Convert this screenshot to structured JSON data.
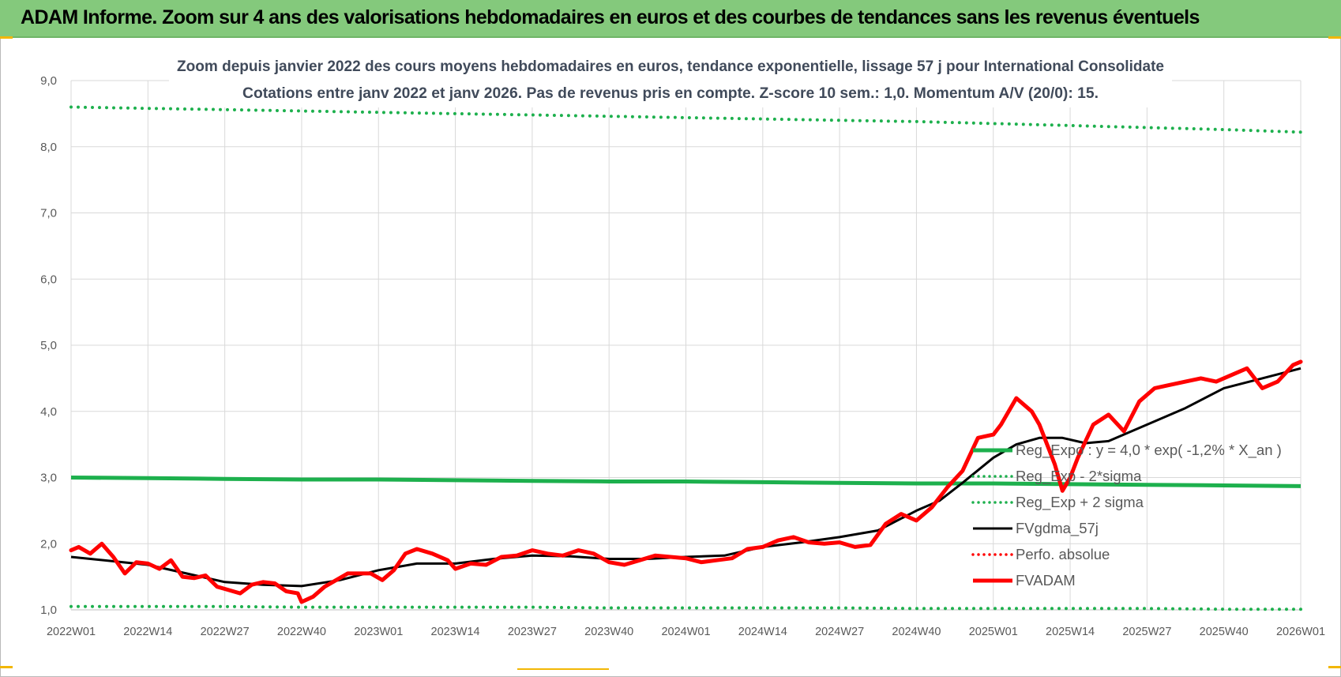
{
  "banner": {
    "title": "ADAM Informe. Zoom sur 4 ans des valorisations hebdomadaires en euros et des courbes de tendances sans les revenus éventuels"
  },
  "colors": {
    "banner_bg": "#84c97c",
    "trend": "#1db04d",
    "band_dots": "#1db04d",
    "moving_average": "#000000",
    "perf_absolue": "#ff0000",
    "price": "#ff0000"
  },
  "chart_data": {
    "type": "line",
    "title_lines": [
      "Zoom depuis janvier 2022 des cours moyens hebdomadaires en euros, tendance exponentielle, lissage 57 j pour International Consolidate",
      "Cotations entre janv 2022 et janv 2026. Pas de revenus pris en compte. Z-score 10 sem.: 1,0. Momentum A/V (20/0): 15."
    ],
    "xlabel": "",
    "ylabel": "",
    "ylim": [
      1.0,
      9.0
    ],
    "y_ticks": [
      "1,0",
      "2,0",
      "3,0",
      "4,0",
      "5,0",
      "6,0",
      "7,0",
      "8,0",
      "9,0"
    ],
    "x_ticks": [
      "2022W01",
      "2022W14",
      "2022W27",
      "2022W40",
      "2023W01",
      "2023W14",
      "2023W27",
      "2023W40",
      "2024W01",
      "2024W14",
      "2024W27",
      "2024W40",
      "2025W01",
      "2025W14",
      "2025W27",
      "2025W40",
      "2026W01"
    ],
    "grid": true,
    "legend_position": "right",
    "legend": [
      {
        "label": "Reg_Expo : y = 4,0 * exp( -1,2% *  X_an )",
        "style": "solid-thick",
        "color": "#1db04d"
      },
      {
        "label": "Reg_Exp - 2*sigma",
        "style": "dotted",
        "color": "#1db04d"
      },
      {
        "label": "Reg_Exp + 2 sigma",
        "style": "dotted",
        "color": "#1db04d"
      },
      {
        "label": "FVgdma_57j",
        "style": "solid",
        "color": "#000000"
      },
      {
        "label": "Perfo. absolue",
        "style": "dotted",
        "color": "#ff0000"
      },
      {
        "label": "FVADAM",
        "style": "solid-thick",
        "color": "#ff0000"
      }
    ],
    "series": [
      {
        "key": "upper",
        "values_at_ticks": [
          8.6,
          8.58,
          8.56,
          8.54,
          8.52,
          8.5,
          8.48,
          8.46,
          8.44,
          8.42,
          8.4,
          8.38,
          8.35,
          8.32,
          8.29,
          8.26,
          8.22
        ]
      },
      {
        "key": "trend",
        "values_at_ticks": [
          3.0,
          2.99,
          2.98,
          2.97,
          2.97,
          2.96,
          2.95,
          2.94,
          2.94,
          2.93,
          2.92,
          2.91,
          2.91,
          2.9,
          2.89,
          2.88,
          2.87
        ]
      },
      {
        "key": "lower",
        "values_at_ticks": [
          1.05,
          1.05,
          1.05,
          1.04,
          1.04,
          1.04,
          1.04,
          1.03,
          1.03,
          1.03,
          1.03,
          1.02,
          1.02,
          1.02,
          1.02,
          1.01,
          1.01
        ]
      },
      {
        "key": "ma57",
        "x": [
          0,
          1,
          1.5,
          2,
          2.5,
          3,
          3.5,
          4,
          4.5,
          5,
          5.5,
          6,
          6.5,
          7,
          7.5,
          8,
          8.5,
          9,
          9.5,
          10,
          10.5,
          11,
          11.3,
          11.6,
          12,
          12.3,
          12.6,
          12.9,
          13.2,
          13.5,
          14,
          14.5,
          15,
          15.5,
          16
        ],
        "y": [
          1.8,
          1.68,
          1.55,
          1.42,
          1.38,
          1.36,
          1.45,
          1.6,
          1.7,
          1.7,
          1.77,
          1.82,
          1.81,
          1.77,
          1.77,
          1.8,
          1.82,
          1.95,
          2.02,
          2.1,
          2.2,
          2.5,
          2.65,
          2.92,
          3.3,
          3.5,
          3.6,
          3.6,
          3.52,
          3.55,
          3.8,
          4.05,
          4.35,
          4.5,
          4.65
        ]
      },
      {
        "key": "price",
        "x": [
          0,
          0.1,
          0.25,
          0.4,
          0.55,
          0.7,
          0.85,
          1.0,
          1.15,
          1.3,
          1.45,
          1.6,
          1.75,
          1.9,
          2.05,
          2.2,
          2.35,
          2.5,
          2.65,
          2.8,
          2.95,
          3.0,
          3.15,
          3.3,
          3.45,
          3.6,
          3.75,
          3.9,
          4.05,
          4.2,
          4.35,
          4.5,
          4.7,
          4.9,
          5.0,
          5.2,
          5.4,
          5.6,
          5.8,
          6.0,
          6.2,
          6.4,
          6.6,
          6.8,
          7.0,
          7.2,
          7.4,
          7.6,
          7.8,
          8.0,
          8.2,
          8.4,
          8.6,
          8.8,
          9.0,
          9.2,
          9.4,
          9.6,
          9.8,
          10.0,
          10.2,
          10.4,
          10.6,
          10.8,
          11.0,
          11.2,
          11.4,
          11.6,
          11.8,
          12.0,
          12.1,
          12.3,
          12.5,
          12.6,
          12.8,
          12.9,
          13.0,
          13.1,
          13.3,
          13.5,
          13.7,
          13.9,
          14.1,
          14.3,
          14.5,
          14.7,
          14.9,
          15.1,
          15.3,
          15.5,
          15.7,
          15.9,
          16.0
        ],
        "y": [
          1.9,
          1.95,
          1.85,
          2.0,
          1.8,
          1.55,
          1.72,
          1.7,
          1.62,
          1.75,
          1.5,
          1.48,
          1.52,
          1.35,
          1.3,
          1.25,
          1.38,
          1.42,
          1.4,
          1.28,
          1.25,
          1.12,
          1.2,
          1.35,
          1.45,
          1.55,
          1.55,
          1.55,
          1.45,
          1.6,
          1.85,
          1.92,
          1.85,
          1.75,
          1.62,
          1.7,
          1.68,
          1.8,
          1.82,
          1.9,
          1.85,
          1.82,
          1.9,
          1.85,
          1.72,
          1.68,
          1.75,
          1.82,
          1.8,
          1.78,
          1.72,
          1.75,
          1.78,
          1.92,
          1.95,
          2.05,
          2.1,
          2.02,
          2.0,
          2.02,
          1.95,
          1.98,
          2.3,
          2.45,
          2.35,
          2.55,
          2.85,
          3.1,
          3.6,
          3.65,
          3.8,
          4.2,
          4.0,
          3.8,
          3.2,
          2.8,
          3.0,
          3.3,
          3.8,
          3.95,
          3.7,
          4.15,
          4.35,
          4.4,
          4.45,
          4.5,
          4.45,
          4.55,
          4.65,
          4.35,
          4.45,
          4.7,
          4.75
        ]
      }
    ]
  }
}
